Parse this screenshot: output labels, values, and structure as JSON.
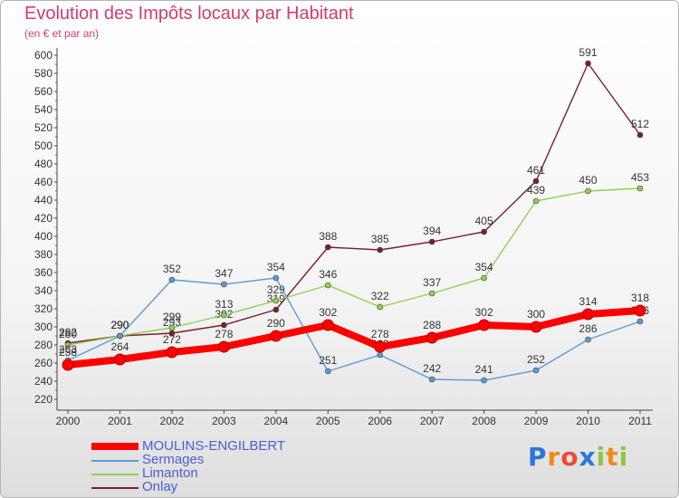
{
  "chart_data": {
    "type": "line",
    "title": "Evolution des Impôts locaux par Habitant",
    "subtitle": "(en € et par an)",
    "xlabel": "",
    "ylabel": "",
    "ylim": [
      220,
      600
    ],
    "ytick_step": 20,
    "grid": false,
    "legend_position": "bottom-left",
    "categories": [
      "2000",
      "2001",
      "2002",
      "2003",
      "2004",
      "2005",
      "2006",
      "2007",
      "2008",
      "2009",
      "2010",
      "2011"
    ],
    "series": [
      {
        "name": "MOULINS-ENGILBERT",
        "color": "#ff0000",
        "width": "thick",
        "values": [
          258,
          264,
          272,
          278,
          290,
          302,
          278,
          288,
          302,
          300,
          314,
          318
        ]
      },
      {
        "name": "Sermages",
        "color": "#5b9bd5",
        "width": "thin",
        "values": [
          263,
          290,
          352,
          347,
          354,
          251,
          269,
          242,
          241,
          252,
          286,
          306
        ]
      },
      {
        "name": "Limanton",
        "color": "#92d050",
        "width": "thin",
        "values": [
          280,
          290,
          299,
          313,
          329,
          346,
          322,
          337,
          354,
          439,
          450,
          453
        ]
      },
      {
        "name": "Onlay",
        "color": "#7b1f2a",
        "width": "thin",
        "values": [
          282,
          290,
          293,
          302,
          319,
          388,
          385,
          394,
          405,
          461,
          591,
          512
        ]
      }
    ]
  },
  "logo": {
    "text": "Proxiti",
    "letters": [
      "P",
      "r",
      "o",
      "x",
      "i",
      "t",
      "i"
    ],
    "colors": [
      "#2e75d6",
      "#f08a1c",
      "#e74c3c",
      "#2e75d6",
      "#8cc63f",
      "#f08a1c",
      "#8cc63f"
    ]
  }
}
